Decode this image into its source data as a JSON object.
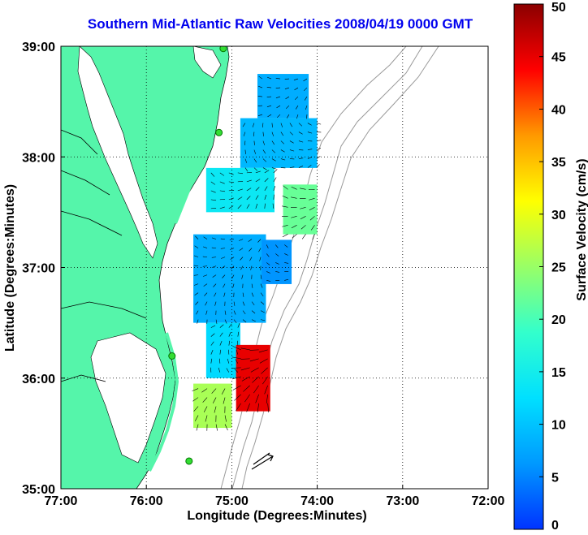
{
  "chart_data": {
    "type": "heatmap",
    "title": "Southern Mid-Atlantic Raw Velocities 2008/04/19 0000 GMT",
    "xlabel": "Longitude (Degrees:Minutes)",
    "ylabel": "Latitude (Degrees:Minutes)",
    "colorbar_label": "Surface Velocity (cm/s)",
    "xlim": [
      -77,
      -72
    ],
    "ylim": [
      35,
      39
    ],
    "x_ticks": [
      {
        "value": -77,
        "label": "77:00"
      },
      {
        "value": -76,
        "label": "76:00"
      },
      {
        "value": -75,
        "label": "75:00"
      },
      {
        "value": -74,
        "label": "74:00"
      },
      {
        "value": -73,
        "label": "73:00"
      },
      {
        "value": -72,
        "label": "72:00"
      }
    ],
    "y_ticks": [
      {
        "value": 35,
        "label": "35:00"
      },
      {
        "value": 36,
        "label": "36:00"
      },
      {
        "value": 37,
        "label": "37:00"
      },
      {
        "value": 38,
        "label": "38:00"
      },
      {
        "value": 39,
        "label": "39:00"
      }
    ],
    "colorbar": {
      "range": [
        0,
        50
      ],
      "ticks": [
        0,
        5,
        10,
        15,
        20,
        25,
        30,
        35,
        40,
        45,
        50
      ],
      "colors": [
        "#0033ff",
        "#0099ff",
        "#00e0ff",
        "#33ffcc",
        "#99ff66",
        "#ffff00",
        "#ff9900",
        "#ff0000",
        "#8b0000"
      ]
    },
    "grid": true,
    "land_color": "#55f5aa",
    "velocity_regions": [
      {
        "lon": [
          -74.7,
          -74.1
        ],
        "lat": [
          38.35,
          38.75
        ],
        "speed": 8
      },
      {
        "lon": [
          -74.9,
          -74.0
        ],
        "lat": [
          37.9,
          38.35
        ],
        "speed": 9
      },
      {
        "lon": [
          -75.3,
          -74.5
        ],
        "lat": [
          37.5,
          37.9
        ],
        "speed": 14
      },
      {
        "lon": [
          -74.4,
          -74.0
        ],
        "lat": [
          37.3,
          37.75
        ],
        "speed": 22
      },
      {
        "lon": [
          -75.45,
          -74.6
        ],
        "lat": [
          36.5,
          37.3
        ],
        "speed": 8
      },
      {
        "lon": [
          -74.65,
          -74.3
        ],
        "lat": [
          36.85,
          37.25
        ],
        "speed": 6
      },
      {
        "lon": [
          -75.3,
          -74.9
        ],
        "lat": [
          36.0,
          36.5
        ],
        "speed": 12
      },
      {
        "lon": [
          -74.95,
          -74.55
        ],
        "lat": [
          35.7,
          36.3
        ],
        "speed": 45
      },
      {
        "lon": [
          -75.45,
          -75.0
        ],
        "lat": [
          35.55,
          35.95
        ],
        "speed": 26
      }
    ],
    "stations": [
      {
        "name": "",
        "lon": -75.1,
        "lat": 38.98
      },
      {
        "name": "",
        "lon": -75.15,
        "lat": 38.22
      },
      {
        "name": "",
        "lon": -75.7,
        "lat": 36.2
      },
      {
        "name": "",
        "lon": -75.5,
        "lat": 35.25
      }
    ]
  }
}
